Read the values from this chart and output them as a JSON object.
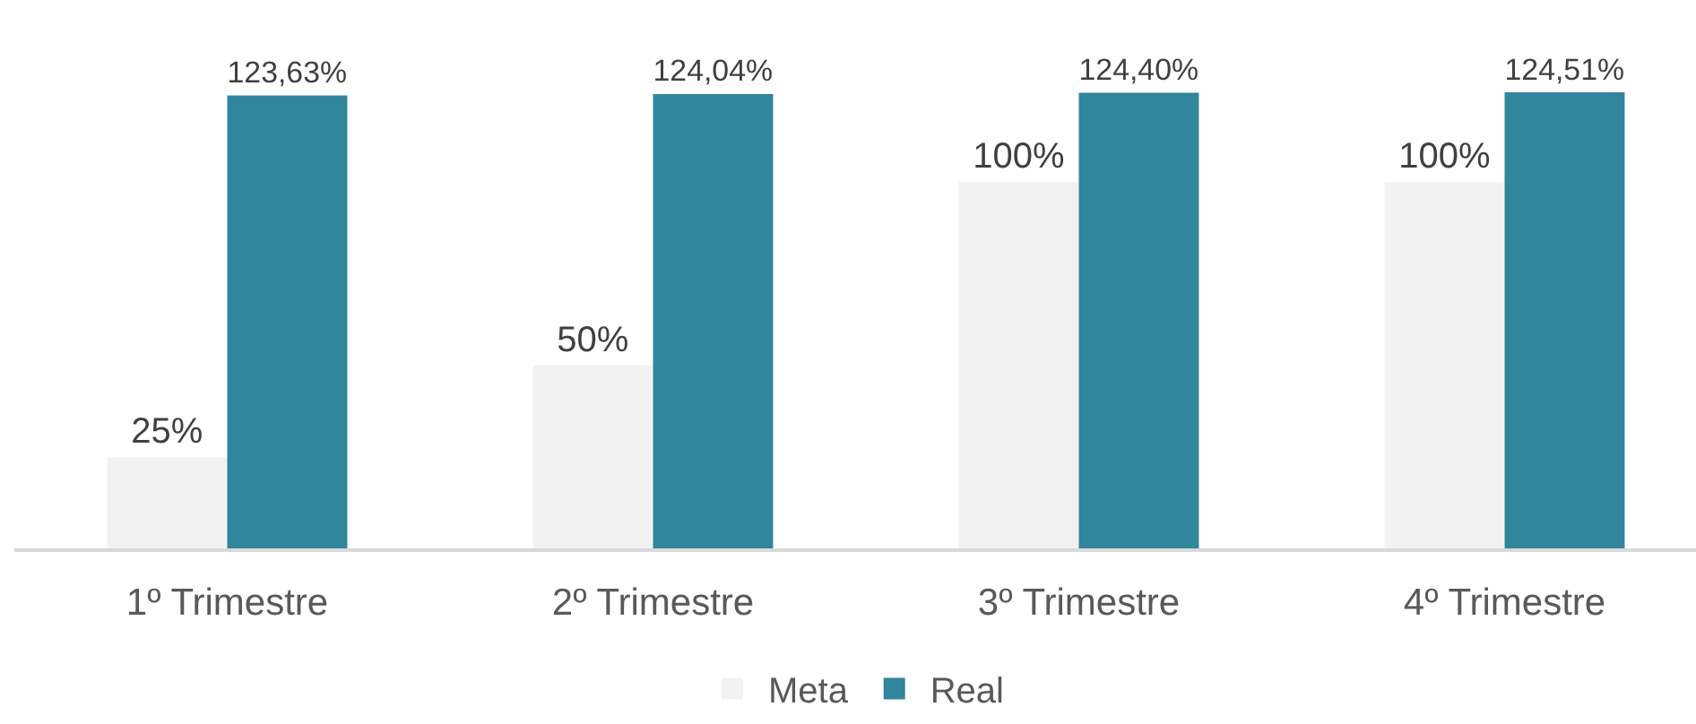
{
  "chart_data": {
    "type": "bar",
    "categories": [
      "1º Trimestre",
      "2º Trimestre",
      "3º Trimestre",
      "4º Trimestre"
    ],
    "series": [
      {
        "name": "Meta",
        "color": "#f2f2f2",
        "values": [
          25,
          50,
          100,
          100
        ],
        "value_labels": [
          "25%",
          "50%",
          "100%",
          "100%"
        ]
      },
      {
        "name": "Real",
        "color": "#31859c",
        "values": [
          123.63,
          124.04,
          124.4,
          124.51
        ],
        "value_labels": [
          "123,63%",
          "124,04%",
          "124,40%",
          "124,51%"
        ]
      }
    ],
    "legend": "bottom"
  }
}
